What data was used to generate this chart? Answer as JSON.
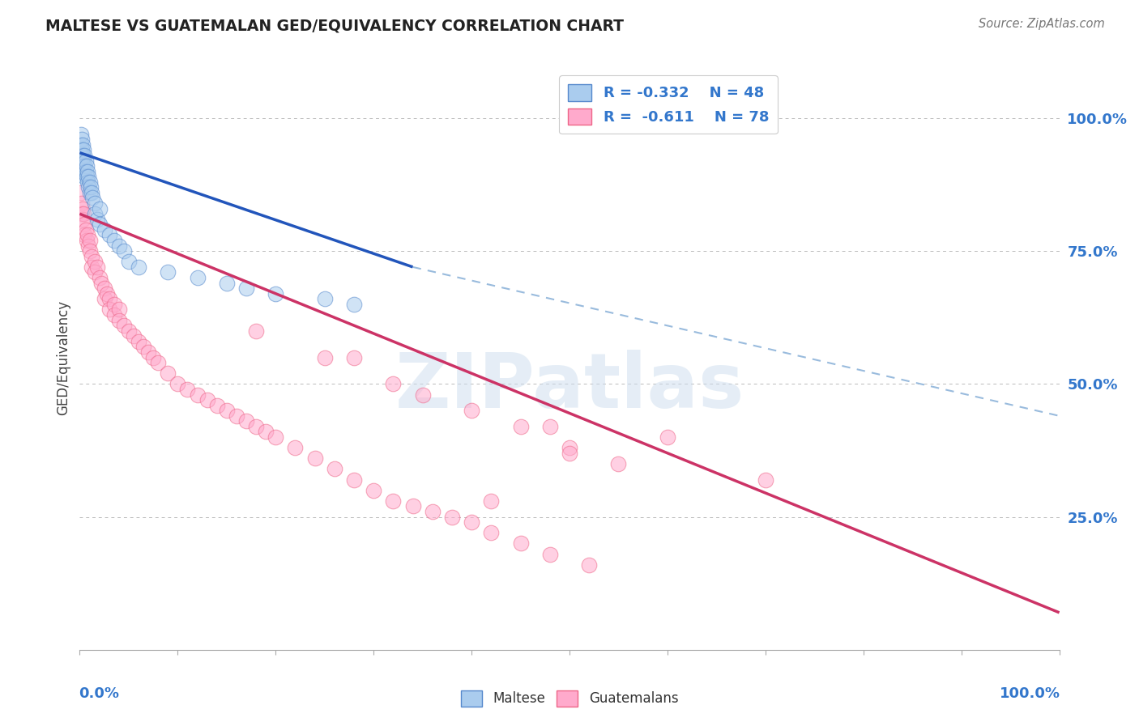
{
  "title": "MALTESE VS GUATEMALAN GED/EQUIVALENCY CORRELATION CHART",
  "source": "Source: ZipAtlas.com",
  "ylabel": "GED/Equivalency",
  "right_yticks": [
    0.25,
    0.5,
    0.75,
    1.0
  ],
  "right_ytick_labels": [
    "25.0%",
    "50.0%",
    "75.0%",
    "100.0%"
  ],
  "legend_blue_r": "R = -0.332",
  "legend_blue_n": "N = 48",
  "legend_pink_r": "R =  -0.611",
  "legend_pink_n": "N = 78",
  "blue_fill": "#AACCEE",
  "blue_edge": "#5588CC",
  "pink_fill": "#FFAACC",
  "pink_edge": "#EE6688",
  "blue_line_color": "#2255BB",
  "pink_line_color": "#CC3366",
  "dashed_line_color": "#99BBDD",
  "watermark": "ZIPatlas",
  "blue_scatter_x": [
    0.001,
    0.001,
    0.001,
    0.002,
    0.002,
    0.002,
    0.002,
    0.003,
    0.003,
    0.003,
    0.004,
    0.004,
    0.004,
    0.005,
    0.005,
    0.005,
    0.006,
    0.006,
    0.007,
    0.007,
    0.008,
    0.008,
    0.009,
    0.009,
    0.01,
    0.01,
    0.011,
    0.012,
    0.013,
    0.015,
    0.015,
    0.018,
    0.02,
    0.02,
    0.025,
    0.03,
    0.035,
    0.04,
    0.045,
    0.05,
    0.06,
    0.09,
    0.12,
    0.15,
    0.17,
    0.2,
    0.25,
    0.28
  ],
  "blue_scatter_y": [
    0.97,
    0.95,
    0.93,
    0.96,
    0.94,
    0.92,
    0.9,
    0.95,
    0.93,
    0.91,
    0.94,
    0.92,
    0.9,
    0.93,
    0.91,
    0.89,
    0.92,
    0.9,
    0.91,
    0.89,
    0.9,
    0.88,
    0.89,
    0.87,
    0.88,
    0.86,
    0.87,
    0.86,
    0.85,
    0.84,
    0.82,
    0.81,
    0.83,
    0.8,
    0.79,
    0.78,
    0.77,
    0.76,
    0.75,
    0.73,
    0.72,
    0.71,
    0.7,
    0.69,
    0.68,
    0.67,
    0.66,
    0.65
  ],
  "pink_scatter_x": [
    0.001,
    0.002,
    0.002,
    0.003,
    0.003,
    0.004,
    0.005,
    0.005,
    0.006,
    0.007,
    0.008,
    0.009,
    0.01,
    0.01,
    0.012,
    0.012,
    0.015,
    0.015,
    0.018,
    0.02,
    0.022,
    0.025,
    0.025,
    0.028,
    0.03,
    0.03,
    0.035,
    0.035,
    0.04,
    0.04,
    0.045,
    0.05,
    0.055,
    0.06,
    0.065,
    0.07,
    0.075,
    0.08,
    0.09,
    0.1,
    0.11,
    0.12,
    0.13,
    0.14,
    0.15,
    0.16,
    0.17,
    0.18,
    0.19,
    0.2,
    0.22,
    0.24,
    0.26,
    0.28,
    0.3,
    0.32,
    0.34,
    0.36,
    0.38,
    0.4,
    0.42,
    0.45,
    0.48,
    0.52,
    0.28,
    0.32,
    0.35,
    0.4,
    0.45,
    0.5,
    0.18,
    0.25,
    0.6,
    0.7,
    0.55,
    0.5,
    0.48,
    0.42
  ],
  "pink_scatter_y": [
    0.86,
    0.84,
    0.82,
    0.83,
    0.81,
    0.82,
    0.8,
    0.78,
    0.79,
    0.77,
    0.78,
    0.76,
    0.77,
    0.75,
    0.74,
    0.72,
    0.73,
    0.71,
    0.72,
    0.7,
    0.69,
    0.68,
    0.66,
    0.67,
    0.66,
    0.64,
    0.65,
    0.63,
    0.64,
    0.62,
    0.61,
    0.6,
    0.59,
    0.58,
    0.57,
    0.56,
    0.55,
    0.54,
    0.52,
    0.5,
    0.49,
    0.48,
    0.47,
    0.46,
    0.45,
    0.44,
    0.43,
    0.42,
    0.41,
    0.4,
    0.38,
    0.36,
    0.34,
    0.32,
    0.3,
    0.28,
    0.27,
    0.26,
    0.25,
    0.24,
    0.22,
    0.2,
    0.18,
    0.16,
    0.55,
    0.5,
    0.48,
    0.45,
    0.42,
    0.38,
    0.6,
    0.55,
    0.4,
    0.32,
    0.35,
    0.37,
    0.42,
    0.28
  ],
  "blue_line_x0": 0.0,
  "blue_line_x1": 0.34,
  "blue_line_y0": 0.935,
  "blue_line_y1": 0.72,
  "dashed_line_x0": 0.34,
  "dashed_line_x1": 1.0,
  "dashed_line_y0": 0.72,
  "dashed_line_y1": 0.44,
  "pink_line_x0": 0.0,
  "pink_line_x1": 1.0,
  "pink_line_y0": 0.82,
  "pink_line_y1": 0.07,
  "xlim": [
    0.0,
    1.0
  ],
  "ylim": [
    0.0,
    1.1
  ],
  "background_color": "#FFFFFF",
  "grid_color": "#BBBBBB"
}
